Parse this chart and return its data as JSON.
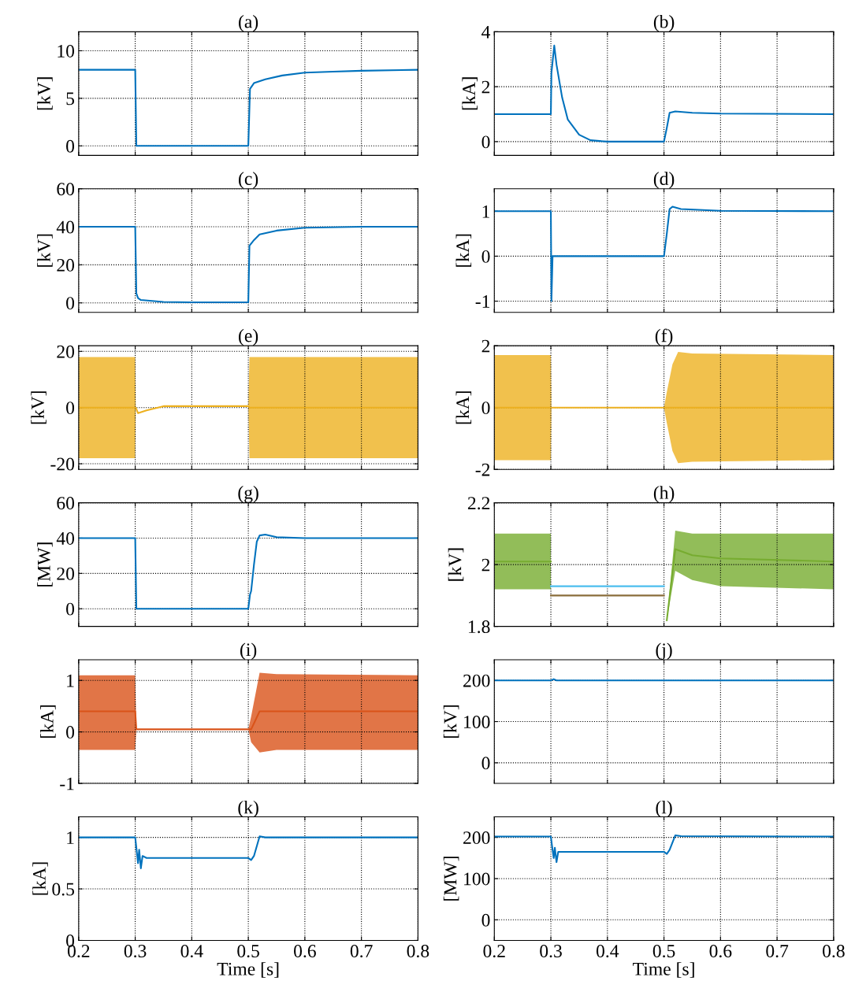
{
  "chart_data": [
    {
      "type": "line",
      "title": "(a)",
      "ylabel": "[kV]",
      "xlim": [
        0.2,
        0.8
      ],
      "xticks": [
        0.2,
        0.3,
        0.4,
        0.5,
        0.6,
        0.7,
        0.8
      ],
      "ylim": [
        -1,
        12
      ],
      "yticks": [
        0,
        5,
        10
      ],
      "grid": true,
      "tick_labels": "y",
      "series": [
        {
          "color": "#0072bd",
          "x": [
            0.2,
            0.3,
            0.302,
            0.5,
            0.503,
            0.51,
            0.53,
            0.56,
            0.6,
            0.65,
            0.7,
            0.8
          ],
          "values": [
            8,
            8,
            0,
            0,
            6,
            6.6,
            7.0,
            7.4,
            7.7,
            7.8,
            7.9,
            8
          ]
        }
      ]
    },
    {
      "type": "line",
      "title": "(b)",
      "ylabel": "[kA]",
      "xlim": [
        0.2,
        0.8
      ],
      "xticks": [
        0.2,
        0.3,
        0.4,
        0.5,
        0.6,
        0.7,
        0.8
      ],
      "ylim": [
        -0.5,
        4
      ],
      "yticks": [
        0,
        2,
        4
      ],
      "grid": true,
      "tick_labels": "y",
      "series": [
        {
          "color": "#0072bd",
          "x": [
            0.2,
            0.3,
            0.301,
            0.306,
            0.31,
            0.32,
            0.33,
            0.35,
            0.37,
            0.4,
            0.5,
            0.505,
            0.51,
            0.52,
            0.55,
            0.6,
            0.8
          ],
          "values": [
            1,
            1,
            2.5,
            3.5,
            2.8,
            1.6,
            0.8,
            0.25,
            0.05,
            0,
            0,
            0.5,
            1.05,
            1.1,
            1.05,
            1.02,
            1.0
          ]
        }
      ]
    },
    {
      "type": "line",
      "title": "(c)",
      "ylabel": "[kV]",
      "xlim": [
        0.2,
        0.8
      ],
      "xticks": [
        0.2,
        0.3,
        0.4,
        0.5,
        0.6,
        0.7,
        0.8
      ],
      "ylim": [
        -5,
        60
      ],
      "yticks": [
        0,
        20,
        40,
        60
      ],
      "grid": true,
      "tick_labels": "y",
      "series": [
        {
          "color": "#0072bd",
          "x": [
            0.2,
            0.3,
            0.302,
            0.305,
            0.31,
            0.35,
            0.4,
            0.5,
            0.502,
            0.51,
            0.52,
            0.55,
            0.6,
            0.7,
            0.8
          ],
          "values": [
            40,
            40,
            5,
            2.5,
            1.5,
            0.5,
            0.3,
            0.3,
            30,
            33,
            36,
            38,
            39.5,
            40,
            40
          ]
        }
      ]
    },
    {
      "type": "line",
      "title": "(d)",
      "ylabel": "[kA]",
      "xlim": [
        0.2,
        0.8
      ],
      "xticks": [
        0.2,
        0.3,
        0.4,
        0.5,
        0.6,
        0.7,
        0.8
      ],
      "ylim": [
        -1.25,
        1.5
      ],
      "yticks": [
        -1,
        0,
        1
      ],
      "grid": true,
      "tick_labels": "y",
      "series": [
        {
          "color": "#0072bd",
          "x": [
            0.2,
            0.3,
            0.301,
            0.303,
            0.5,
            0.505,
            0.51,
            0.515,
            0.53,
            0.6,
            0.8
          ],
          "values": [
            1,
            1,
            -1,
            0,
            0,
            0.5,
            1.05,
            1.1,
            1.05,
            1.01,
            1.0
          ]
        }
      ]
    },
    {
      "type": "line",
      "title": "(e)",
      "ylabel": "[kV]",
      "xlim": [
        0.2,
        0.8
      ],
      "xticks": [
        0.2,
        0.3,
        0.4,
        0.5,
        0.6,
        0.7,
        0.8
      ],
      "ylim": [
        -22,
        22
      ],
      "yticks": [
        -20,
        0,
        20
      ],
      "grid": true,
      "tick_labels": "y",
      "series": [
        {
          "color": "#edb120",
          "x": [
            0.2,
            0.3,
            0.301,
            0.305,
            0.32,
            0.35,
            0.5,
            0.502,
            0.51,
            0.8
          ],
          "values": [
            0,
            0,
            0,
            -2,
            -1,
            0.5,
            0.5,
            0,
            0,
            0
          ],
          "lower": [
            -18,
            -18,
            0,
            -2,
            -1,
            0.5,
            0.5,
            -18,
            -18,
            -18
          ],
          "upper": [
            18,
            18,
            0,
            -2,
            -1,
            0.5,
            0.5,
            18,
            18,
            18
          ]
        }
      ]
    },
    {
      "type": "line",
      "title": "(f)",
      "ylabel": "[kA]",
      "xlim": [
        0.2,
        0.8
      ],
      "xticks": [
        0.2,
        0.3,
        0.4,
        0.5,
        0.6,
        0.7,
        0.8
      ],
      "ylim": [
        -2,
        2
      ],
      "yticks": [
        -2,
        0,
        2
      ],
      "grid": true,
      "tick_labels": "y",
      "series": [
        {
          "color": "#edb120",
          "x": [
            0.2,
            0.3,
            0.301,
            0.5,
            0.505,
            0.515,
            0.525,
            0.55,
            0.8
          ],
          "values": [
            0,
            0,
            0,
            0,
            0,
            0,
            0,
            0,
            0
          ],
          "lower": [
            -1.7,
            -1.7,
            0,
            0,
            -0.5,
            -1.4,
            -1.8,
            -1.75,
            -1.7
          ],
          "upper": [
            1.7,
            1.7,
            0,
            0,
            0.5,
            1.4,
            1.8,
            1.75,
            1.7
          ]
        }
      ]
    },
    {
      "type": "line",
      "title": "(g)",
      "ylabel": "[MW]",
      "xlim": [
        0.2,
        0.8
      ],
      "xticks": [
        0.2,
        0.3,
        0.4,
        0.5,
        0.6,
        0.7,
        0.8
      ],
      "ylim": [
        -10,
        60
      ],
      "yticks": [
        0,
        20,
        40,
        60
      ],
      "grid": true,
      "tick_labels": "y",
      "series": [
        {
          "color": "#0072bd",
          "x": [
            0.2,
            0.3,
            0.302,
            0.5,
            0.503,
            0.505,
            0.51,
            0.515,
            0.52,
            0.53,
            0.55,
            0.6,
            0.8
          ],
          "values": [
            40,
            40,
            0,
            0,
            8,
            10,
            25,
            38,
            41.5,
            42,
            40.5,
            40,
            40
          ]
        }
      ]
    },
    {
      "type": "line",
      "title": "(h)",
      "ylabel": "[kV]",
      "xlim": [
        0.2,
        0.8
      ],
      "xticks": [
        0.2,
        0.3,
        0.4,
        0.5,
        0.6,
        0.7,
        0.8
      ],
      "ylim": [
        1.8,
        2.2
      ],
      "yticks": [
        1.8,
        2,
        2.2
      ],
      "grid": true,
      "tick_labels": "y",
      "series": [
        {
          "color": "#77ac30",
          "x": [
            0.2,
            0.3,
            0.4,
            0.505,
            0.52,
            0.55,
            0.6,
            0.8
          ],
          "values": [
            2.01,
            2.01,
            null,
            1.82,
            2.05,
            2.03,
            2.02,
            2.01
          ],
          "lower": [
            1.92,
            1.92,
            null,
            1.82,
            1.98,
            1.95,
            1.93,
            1.92
          ],
          "upper": [
            2.1,
            2.1,
            null,
            1.82,
            2.11,
            2.1,
            2.1,
            2.1
          ]
        },
        {
          "color": "#4dbeee",
          "x": [
            0.3,
            0.5
          ],
          "values": [
            1.93,
            1.93
          ]
        },
        {
          "color": "#8a6d3b",
          "x": [
            0.3,
            0.5
          ],
          "values": [
            1.9,
            1.9
          ]
        }
      ]
    },
    {
      "type": "line",
      "title": "(i)",
      "ylabel": "[kA]",
      "xlim": [
        0.2,
        0.8
      ],
      "xticks": [
        0.2,
        0.3,
        0.4,
        0.5,
        0.6,
        0.7,
        0.8
      ],
      "ylim": [
        -1,
        1.4
      ],
      "yticks": [
        -1,
        0,
        1
      ],
      "grid": true,
      "tick_labels": "y",
      "series": [
        {
          "color": "#d95319",
          "x": [
            0.2,
            0.3,
            0.302,
            0.5,
            0.505,
            0.52,
            0.55,
            0.8
          ],
          "values": [
            0.4,
            0.4,
            0.05,
            0.05,
            0.05,
            0.4,
            0.4,
            0.4
          ],
          "lower": [
            -0.35,
            -0.35,
            0.05,
            0.05,
            -0.2,
            -0.4,
            -0.35,
            -0.35
          ],
          "upper": [
            1.1,
            1.1,
            0.05,
            0.05,
            0.3,
            1.15,
            1.12,
            1.1
          ]
        }
      ]
    },
    {
      "type": "line",
      "title": "(j)",
      "ylabel": "[kV]",
      "xlim": [
        0.2,
        0.8
      ],
      "xticks": [
        0.2,
        0.3,
        0.4,
        0.5,
        0.6,
        0.7,
        0.8
      ],
      "ylim": [
        -50,
        250
      ],
      "yticks": [
        0,
        100,
        200
      ],
      "grid": true,
      "tick_labels": "y",
      "series": [
        {
          "color": "#0072bd",
          "x": [
            0.2,
            0.3,
            0.305,
            0.31,
            0.8
          ],
          "values": [
            200,
            200,
            203,
            200,
            200
          ]
        }
      ]
    },
    {
      "type": "line",
      "title": "(k)",
      "xlabel": "Time [s]",
      "ylabel": "[kA]",
      "xlim": [
        0.2,
        0.8
      ],
      "xticks": [
        0.2,
        0.3,
        0.4,
        0.5,
        0.6,
        0.7,
        0.8
      ],
      "ylim": [
        0,
        1.2
      ],
      "yticks": [
        0,
        0.5,
        1
      ],
      "grid": true,
      "series": [
        {
          "color": "#0072bd",
          "x": [
            0.2,
            0.3,
            0.302,
            0.305,
            0.307,
            0.31,
            0.313,
            0.32,
            0.5,
            0.505,
            0.51,
            0.52,
            0.53,
            0.8
          ],
          "values": [
            1,
            1,
            0.9,
            0.75,
            0.88,
            0.7,
            0.82,
            0.8,
            0.8,
            0.78,
            0.82,
            1.01,
            1.0,
            1.0
          ]
        }
      ]
    },
    {
      "type": "line",
      "title": "(l)",
      "xlabel": "Time [s]",
      "ylabel": "[MW]",
      "xlim": [
        0.2,
        0.8
      ],
      "xticks": [
        0.2,
        0.3,
        0.4,
        0.5,
        0.6,
        0.7,
        0.8
      ],
      "ylim": [
        -50,
        250
      ],
      "yticks": [
        0,
        100,
        200
      ],
      "grid": true,
      "series": [
        {
          "color": "#0072bd",
          "x": [
            0.2,
            0.3,
            0.302,
            0.305,
            0.307,
            0.31,
            0.313,
            0.32,
            0.5,
            0.505,
            0.51,
            0.52,
            0.53,
            0.8
          ],
          "values": [
            202,
            202,
            180,
            150,
            175,
            140,
            165,
            165,
            165,
            160,
            170,
            205,
            203,
            202
          ]
        }
      ]
    }
  ]
}
